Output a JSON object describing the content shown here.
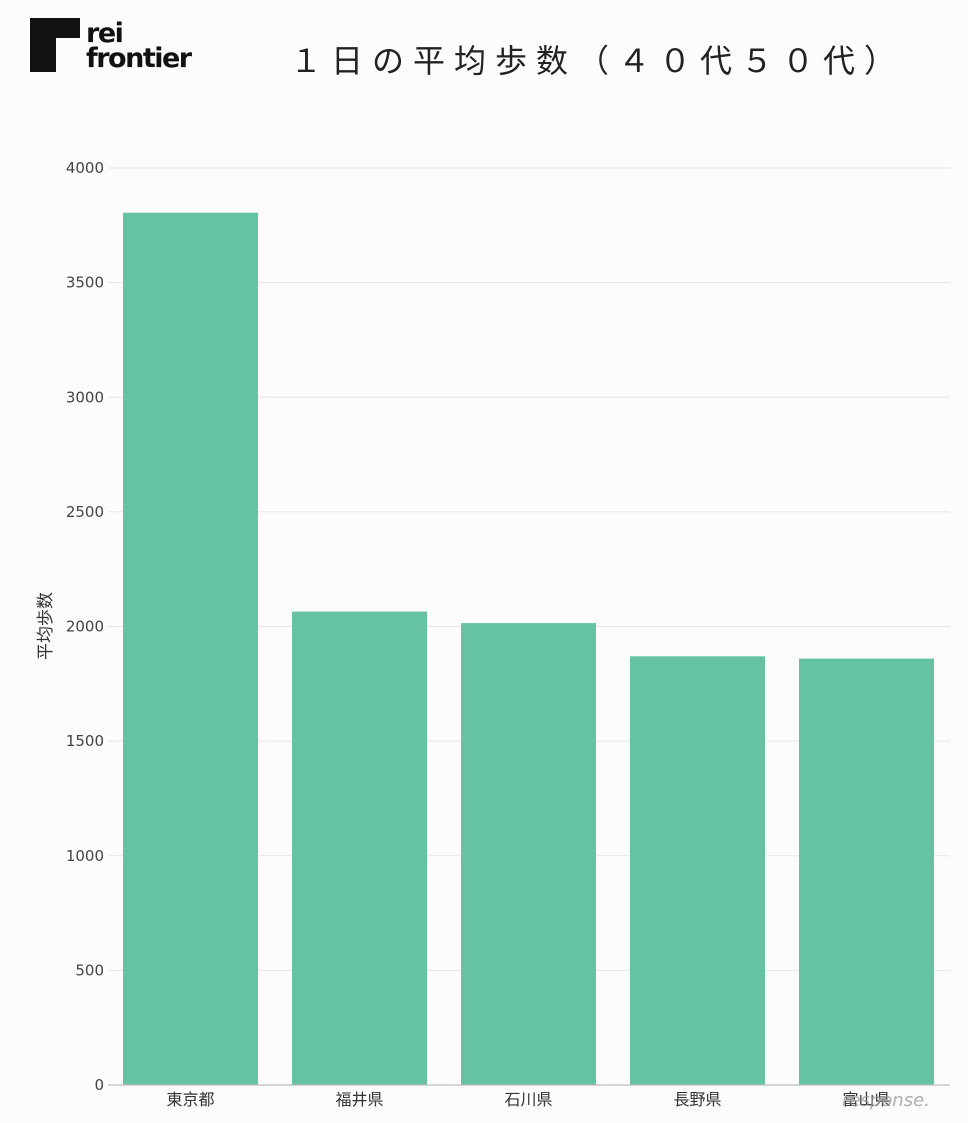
{
  "logo": {
    "line1": "rei",
    "line2": "frontier"
  },
  "watermark": "response.",
  "chart_data": {
    "type": "bar",
    "title": "１日の平均歩数（４０代５０代）",
    "ylabel": "平均歩数",
    "xlabel": "",
    "categories": [
      "東京都",
      "福井県",
      "石川県",
      "長野県",
      "富山県"
    ],
    "values": [
      3805,
      2065,
      2015,
      1870,
      1860
    ],
    "ylim": [
      0,
      4000
    ],
    "yticks": [
      0,
      500,
      1000,
      1500,
      2000,
      2500,
      3000,
      3500,
      4000
    ],
    "grid": true,
    "bar_color": "#65c2a2",
    "grid_color": "#e6e6e6",
    "axis_color": "#bdbdbd"
  }
}
